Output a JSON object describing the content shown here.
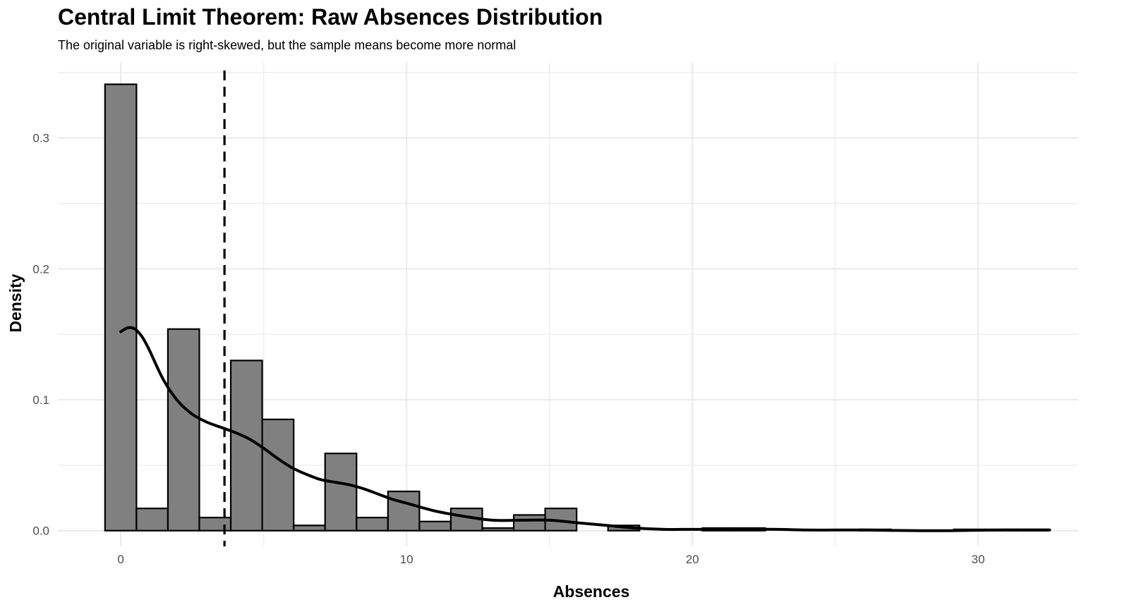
{
  "chart_data": {
    "type": "bar",
    "title": "Central Limit Theorem: Raw Absences Distribution",
    "subtitle": "The original variable is right-skewed, but the sample means become more normal",
    "xlabel": "Absences",
    "ylabel": "Density",
    "xlim": [
      -2.2,
      33.5
    ],
    "ylim": [
      -0.012,
      0.358
    ],
    "x_ticks": [
      0,
      10,
      20,
      30
    ],
    "y_ticks": [
      0.0,
      0.1,
      0.2,
      0.3
    ],
    "x_tick_labels": [
      "0",
      "10",
      "20",
      "30"
    ],
    "y_tick_labels": [
      "0.0",
      "0.1",
      "0.2",
      "0.3"
    ],
    "grid": true,
    "colors": {
      "bar_fill": "#808080",
      "bar_stroke": "#000000",
      "line": "#000000",
      "grid": "#ebebeb"
    },
    "histogram": {
      "bin_width": 1.1,
      "bins": [
        {
          "x_start": -0.55,
          "x_end": 0.55,
          "density": 0.341
        },
        {
          "x_start": 0.55,
          "x_end": 1.65,
          "density": 0.017
        },
        {
          "x_start": 1.65,
          "x_end": 2.75,
          "density": 0.154
        },
        {
          "x_start": 2.75,
          "x_end": 3.85,
          "density": 0.01
        },
        {
          "x_start": 3.85,
          "x_end": 4.95,
          "density": 0.13
        },
        {
          "x_start": 4.95,
          "x_end": 6.05,
          "density": 0.085
        },
        {
          "x_start": 6.05,
          "x_end": 7.15,
          "density": 0.004
        },
        {
          "x_start": 7.15,
          "x_end": 8.25,
          "density": 0.059
        },
        {
          "x_start": 8.25,
          "x_end": 9.35,
          "density": 0.01
        },
        {
          "x_start": 9.35,
          "x_end": 10.45,
          "density": 0.03
        },
        {
          "x_start": 10.45,
          "x_end": 11.55,
          "density": 0.007
        },
        {
          "x_start": 11.55,
          "x_end": 12.65,
          "density": 0.017
        },
        {
          "x_start": 12.65,
          "x_end": 13.75,
          "density": 0.002
        },
        {
          "x_start": 13.75,
          "x_end": 14.85,
          "density": 0.012
        },
        {
          "x_start": 14.85,
          "x_end": 15.95,
          "density": 0.017
        },
        {
          "x_start": 15.95,
          "x_end": 17.05,
          "density": 0.0
        },
        {
          "x_start": 17.05,
          "x_end": 18.15,
          "density": 0.004
        },
        {
          "x_start": 18.15,
          "x_end": 19.25,
          "density": 0.0
        },
        {
          "x_start": 19.25,
          "x_end": 20.35,
          "density": 0.0
        },
        {
          "x_start": 20.35,
          "x_end": 21.45,
          "density": 0.002
        },
        {
          "x_start": 21.45,
          "x_end": 22.55,
          "density": 0.002
        },
        {
          "x_start": 22.55,
          "x_end": 23.65,
          "density": 0.0
        },
        {
          "x_start": 23.65,
          "x_end": 24.75,
          "density": 0.0
        },
        {
          "x_start": 24.75,
          "x_end": 25.85,
          "density": 0.0
        },
        {
          "x_start": 25.85,
          "x_end": 26.95,
          "density": 0.001
        },
        {
          "x_start": 26.95,
          "x_end": 28.05,
          "density": 0.0
        },
        {
          "x_start": 28.05,
          "x_end": 29.15,
          "density": 0.0
        },
        {
          "x_start": 29.15,
          "x_end": 30.25,
          "density": 0.001
        },
        {
          "x_start": 30.25,
          "x_end": 31.35,
          "density": 0.001
        },
        {
          "x_start": 31.35,
          "x_end": 32.45,
          "density": 0.001
        }
      ]
    },
    "density_curve": {
      "x": [
        0,
        0.25,
        0.5,
        0.75,
        1,
        1.5,
        2,
        2.5,
        3,
        3.5,
        4,
        4.5,
        5,
        5.5,
        6,
        6.5,
        7,
        7.5,
        8,
        8.5,
        9,
        9.5,
        10,
        11,
        12,
        13,
        14,
        15,
        16,
        17,
        18,
        19,
        20,
        21,
        22,
        23,
        24,
        25,
        26,
        27,
        28,
        29,
        30,
        31,
        32.5
      ],
      "y": [
        0.152,
        0.155,
        0.154,
        0.148,
        0.138,
        0.115,
        0.099,
        0.089,
        0.083,
        0.079,
        0.075,
        0.07,
        0.063,
        0.055,
        0.048,
        0.043,
        0.039,
        0.037,
        0.035,
        0.032,
        0.028,
        0.024,
        0.021,
        0.015,
        0.011,
        0.008,
        0.008,
        0.008,
        0.006,
        0.004,
        0.002,
        0.001,
        0.001,
        0.001,
        0.001,
        0.001,
        0.0005,
        0.0005,
        0.0005,
        0.0002,
        0.0,
        0.0,
        0.0003,
        0.0005,
        0.0005
      ]
    },
    "mean_line": {
      "x": 3.63,
      "style": "dashed"
    }
  }
}
